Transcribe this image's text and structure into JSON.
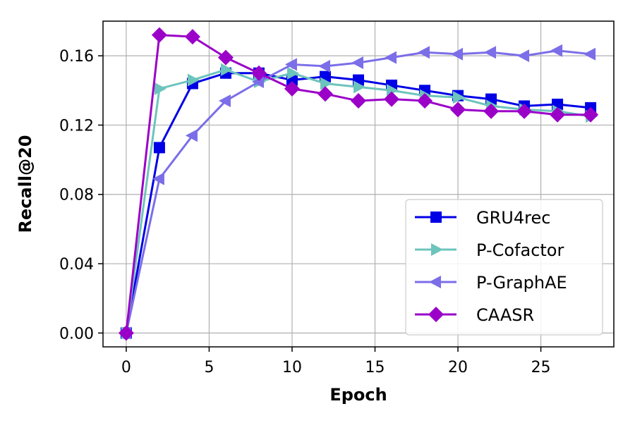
{
  "chart_data": {
    "type": "line",
    "title": "",
    "xlabel": "Epoch",
    "ylabel": "Recall@20",
    "xlim": [
      -1.4,
      29.4
    ],
    "ylim": [
      -0.008,
      0.18
    ],
    "xticks": [
      0,
      5,
      10,
      15,
      20,
      25
    ],
    "xtick_labels": [
      "0",
      "5",
      "10",
      "15",
      "20",
      "25"
    ],
    "yticks": [
      0.0,
      0.04,
      0.08,
      0.12,
      0.16
    ],
    "ytick_labels": [
      "0.00",
      "0.04",
      "0.08",
      "0.12",
      "0.16"
    ],
    "grid": true,
    "legend_position": "lower-right",
    "x": [
      0,
      2,
      4,
      6,
      8,
      10,
      12,
      14,
      16,
      18,
      20,
      22,
      24,
      26,
      28
    ],
    "series": [
      {
        "name": "GRU4rec",
        "color": "#0000e6",
        "marker": "square",
        "values": [
          0.0,
          0.107,
          0.144,
          0.15,
          0.15,
          0.146,
          0.148,
          0.146,
          0.143,
          0.14,
          0.137,
          0.135,
          0.131,
          0.132,
          0.13
        ]
      },
      {
        "name": "P-Cofactor",
        "color": "#6cc4bc",
        "marker": "triangle-right",
        "values": [
          0.0,
          0.141,
          0.146,
          0.152,
          0.145,
          0.15,
          0.144,
          0.142,
          0.14,
          0.137,
          0.136,
          0.131,
          0.129,
          0.128,
          0.125
        ]
      },
      {
        "name": "P-GraphAE",
        "color": "#7b6ee8",
        "marker": "triangle-left",
        "values": [
          0.0,
          0.089,
          0.114,
          0.134,
          0.145,
          0.155,
          0.154,
          0.156,
          0.159,
          0.162,
          0.161,
          0.162,
          0.16,
          0.163,
          0.161
        ]
      },
      {
        "name": "CAASR",
        "color": "#9b00c8",
        "marker": "diamond",
        "values": [
          0.0,
          0.172,
          0.171,
          0.159,
          0.15,
          0.141,
          0.138,
          0.134,
          0.135,
          0.134,
          0.129,
          0.128,
          0.128,
          0.126,
          0.126
        ]
      }
    ]
  }
}
